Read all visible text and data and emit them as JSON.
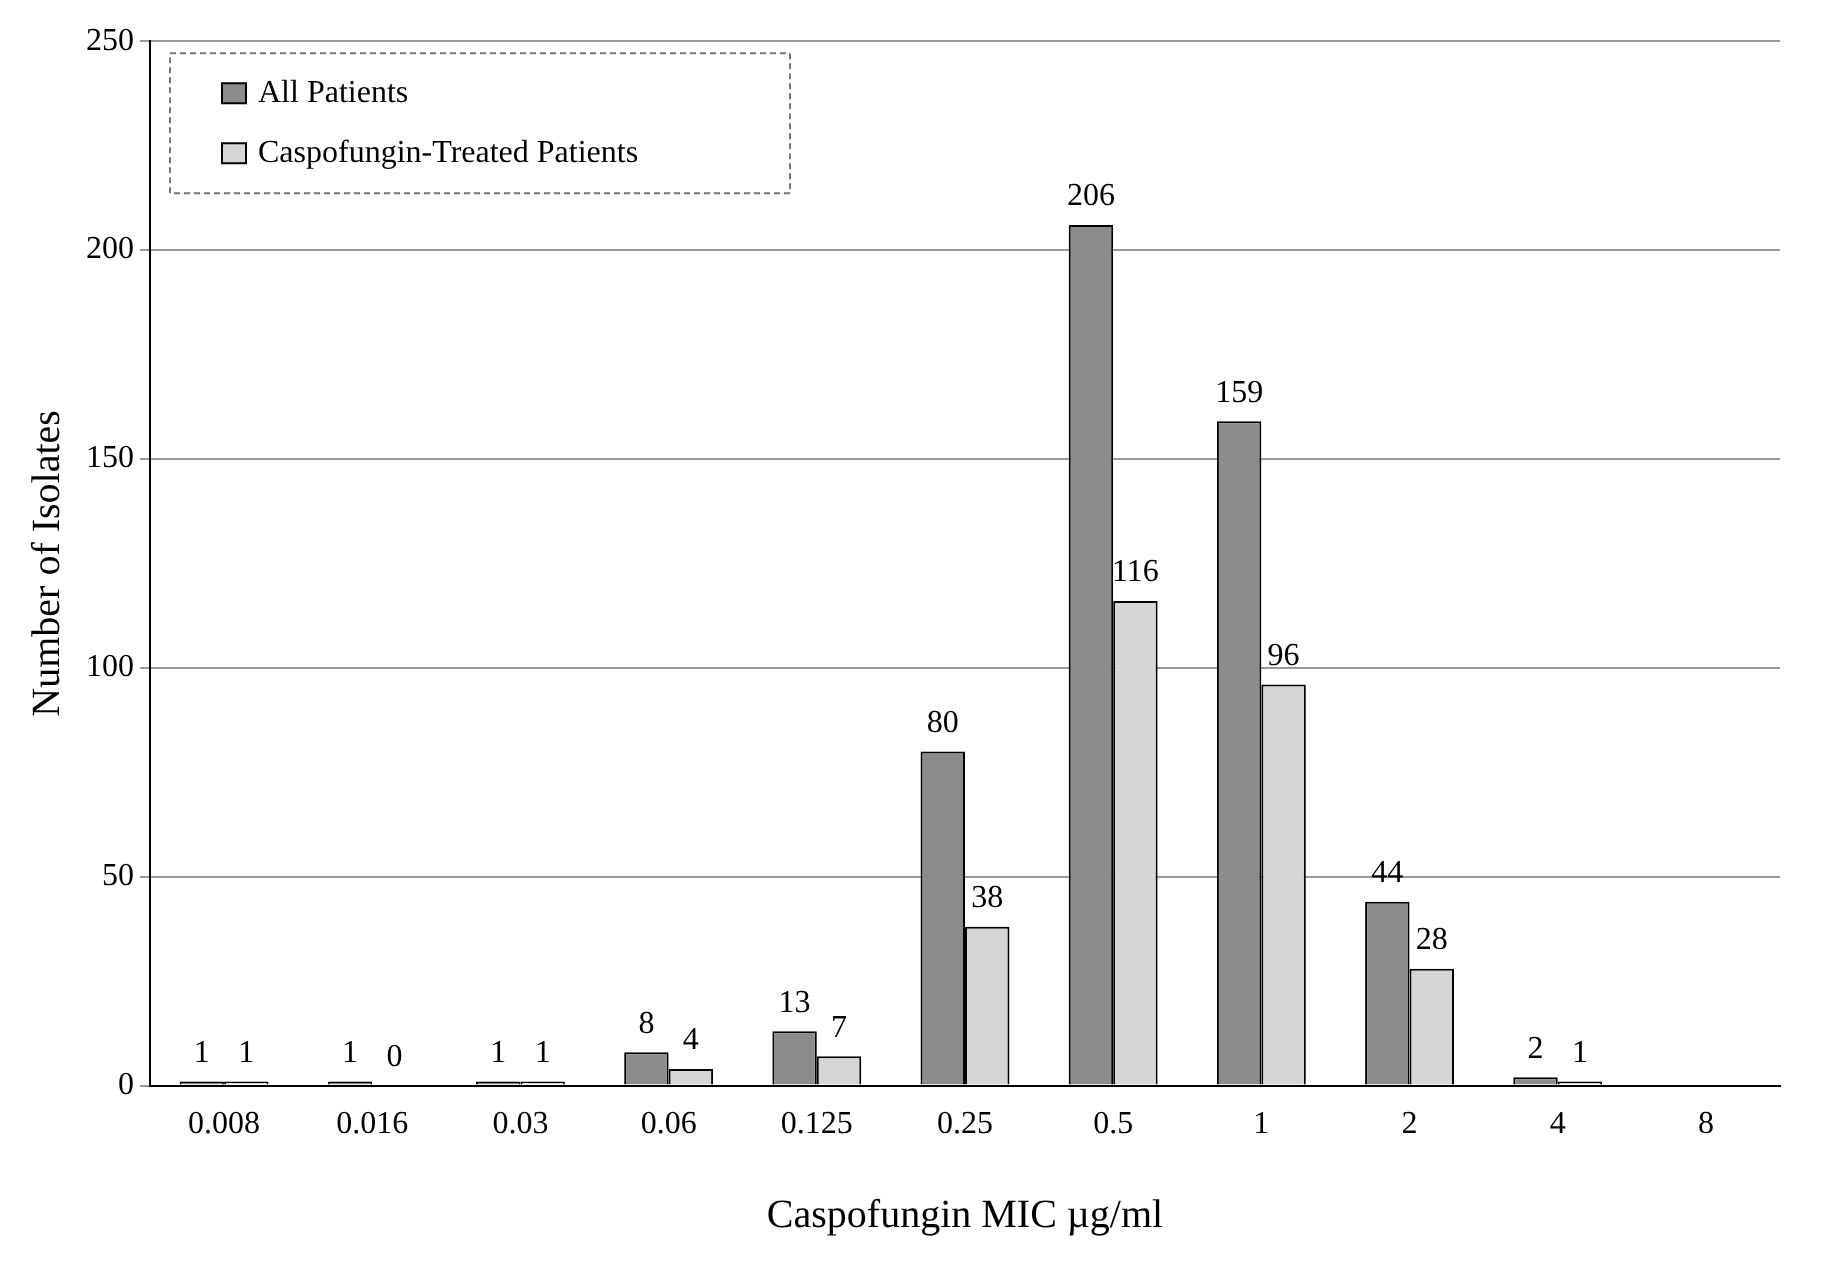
{
  "chart_data": {
    "type": "bar",
    "xlabel": "Caspofungin MIC µg/ml",
    "ylabel": "Number of Isolates",
    "categories": [
      "0.008",
      "0.016",
      "0.03",
      "0.06",
      "0.125",
      "0.25",
      "0.5",
      "1",
      "2",
      "4",
      "8"
    ],
    "series": [
      {
        "name": "All Patients",
        "color": "#8c8c8c",
        "values": [
          1,
          1,
          1,
          8,
          13,
          80,
          206,
          159,
          44,
          2,
          null
        ]
      },
      {
        "name": "Caspofungin-Treated Patients",
        "color": "#d6d6d6",
        "values": [
          1,
          0,
          1,
          4,
          7,
          38,
          116,
          96,
          28,
          1,
          null
        ]
      }
    ],
    "ylim": [
      0,
      250
    ],
    "yticks": [
      0,
      50,
      100,
      150,
      200,
      250
    ],
    "grid": "y",
    "legend": "top left",
    "data_labels": true
  }
}
